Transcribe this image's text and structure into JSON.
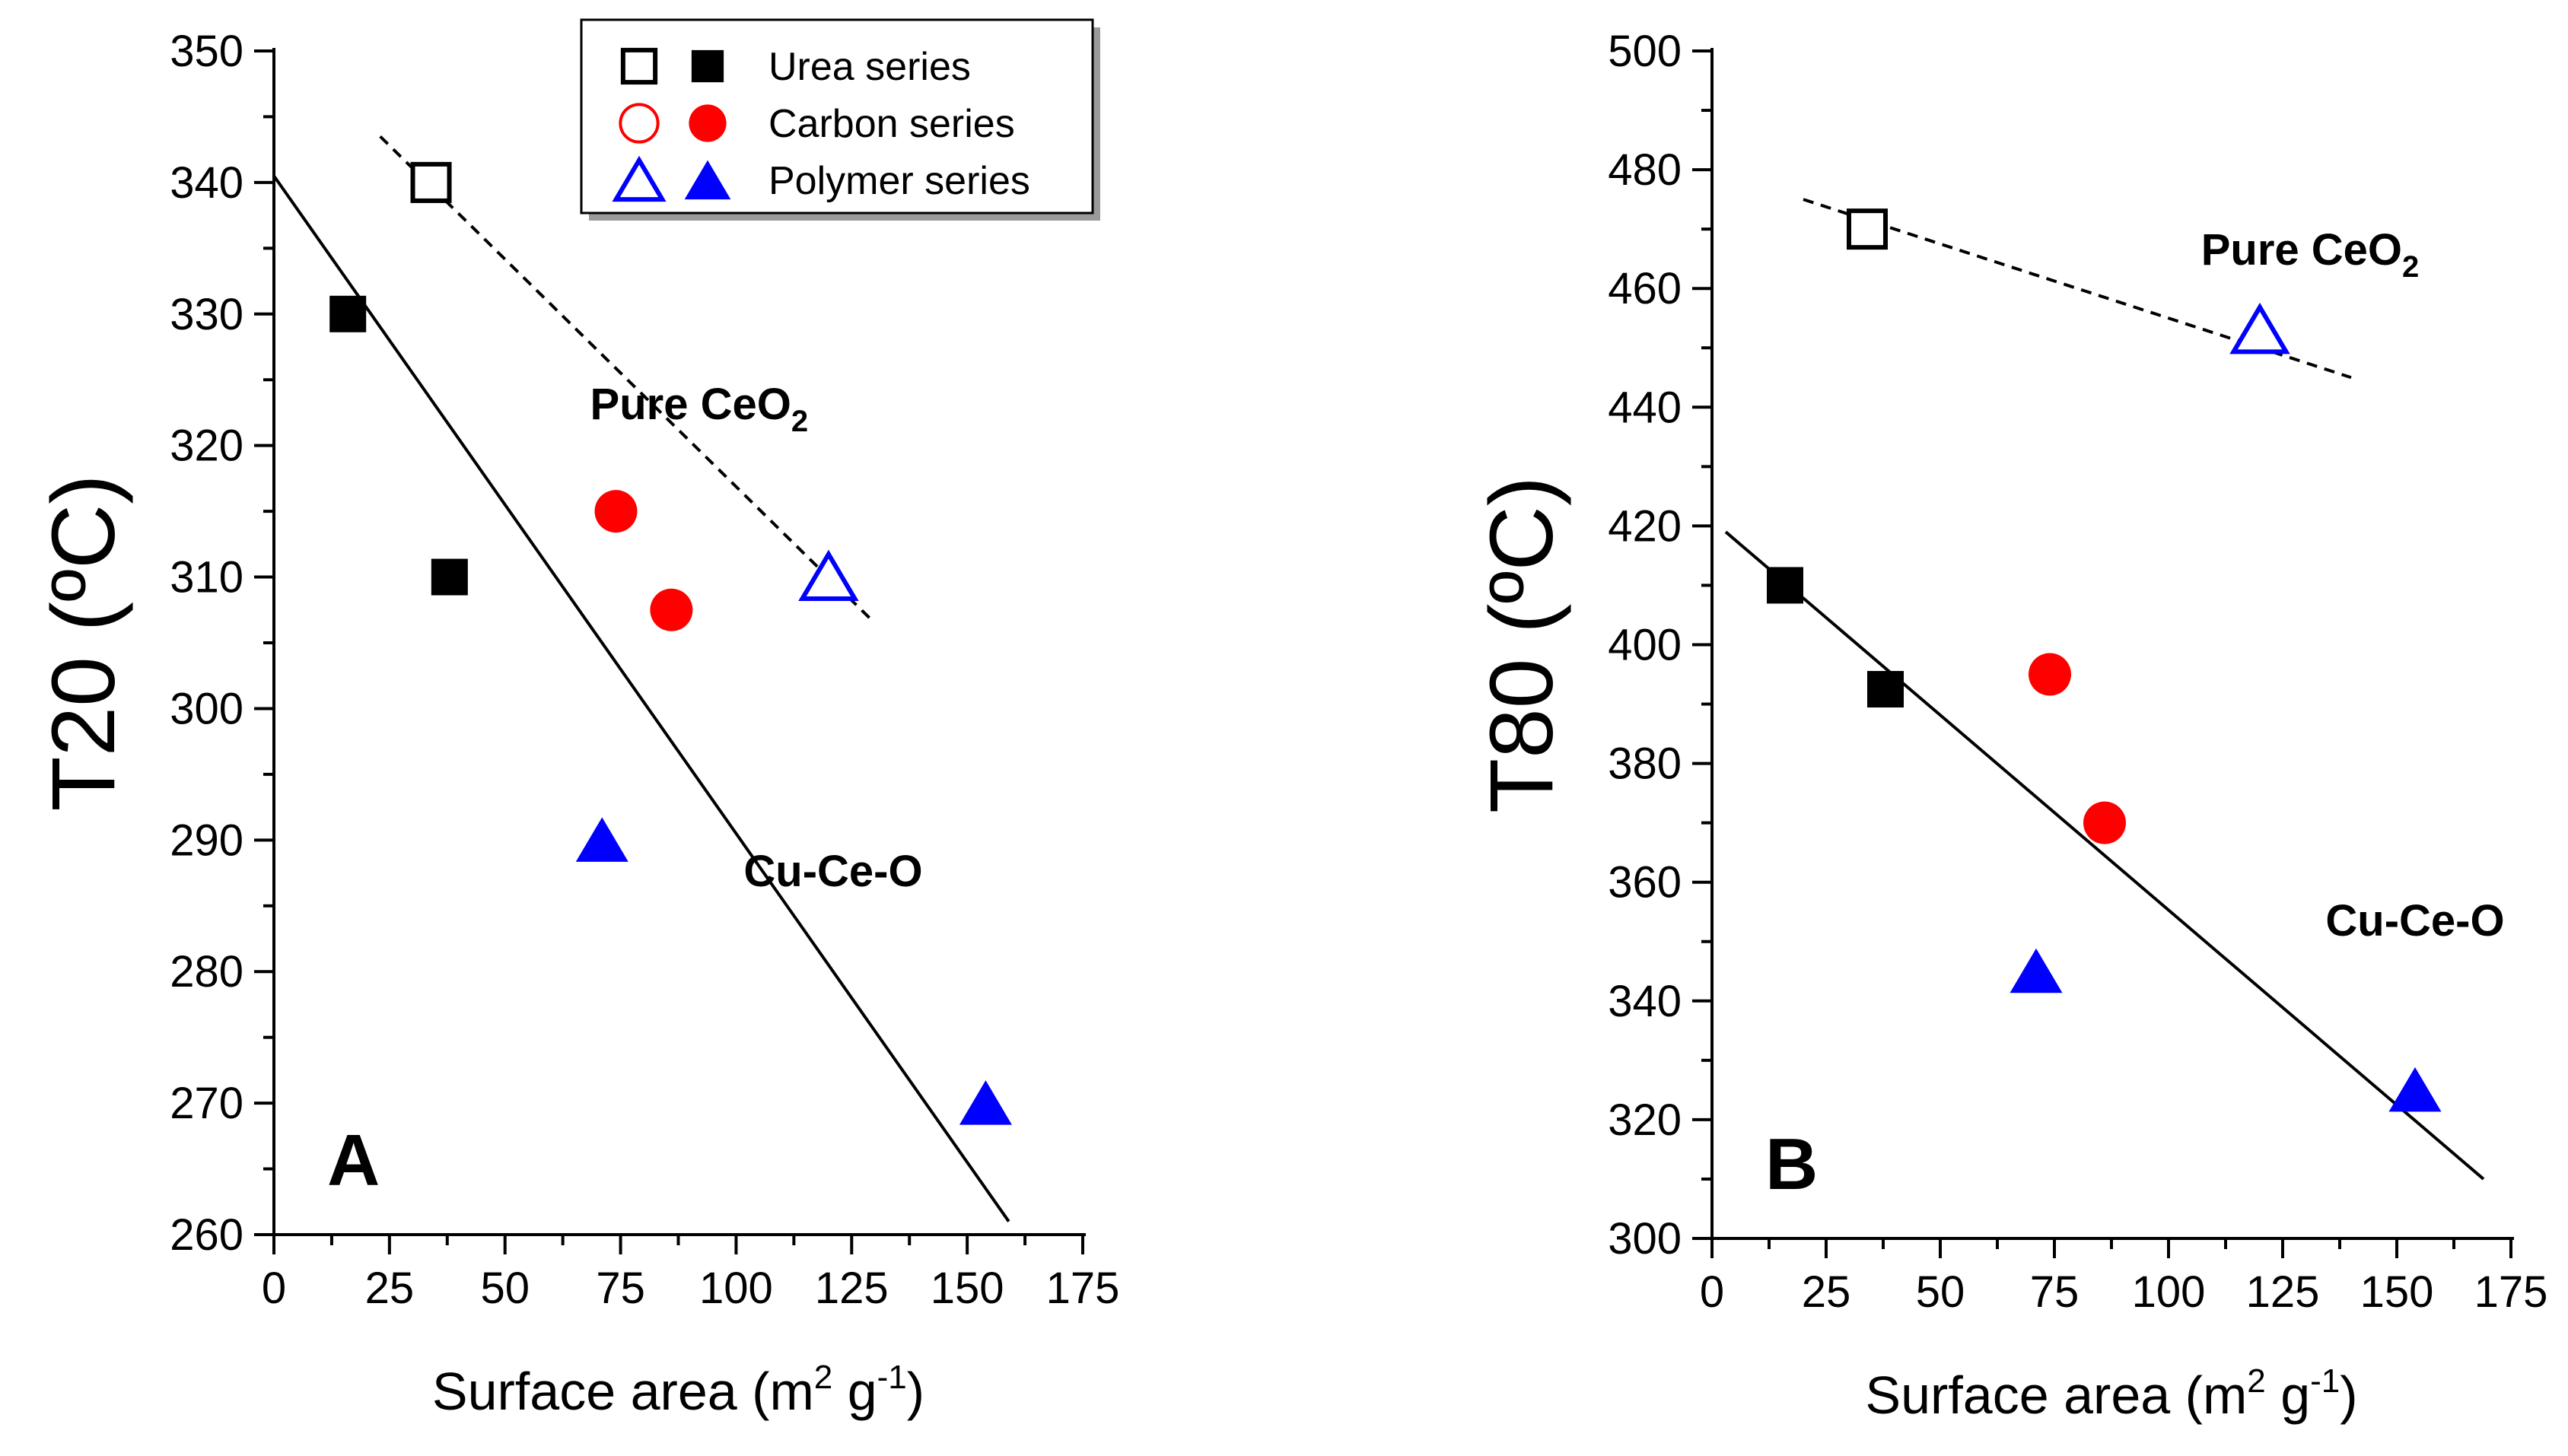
{
  "chart_data": [
    {
      "type": "scatter",
      "panel_label": "A",
      "xlabel": "Surface area (m",
      "xlabel_sup1": "2",
      "xlabel_mid": " g",
      "xlabel_sup2": "-1",
      "xlabel_end": ")",
      "ylabel": "T20 (ºC)",
      "xlim": [
        0,
        175
      ],
      "ylim": [
        260,
        350
      ],
      "xticks": [
        "0",
        "25",
        "50",
        "75",
        "100",
        "125",
        "150",
        "175"
      ],
      "yticks": [
        "260",
        "270",
        "280",
        "290",
        "300",
        "310",
        "320",
        "330",
        "340",
        "350"
      ],
      "series": [
        {
          "name": "Urea series",
          "marker": "square",
          "points": [
            {
              "x": 34,
              "y": 340,
              "filled": false
            },
            {
              "x": 16,
              "y": 330,
              "filled": true
            },
            {
              "x": 38,
              "y": 310,
              "filled": true
            }
          ]
        },
        {
          "name": "Carbon series",
          "marker": "circle",
          "points": [
            {
              "x": 74,
              "y": 315,
              "filled": true
            },
            {
              "x": 86,
              "y": 307.5,
              "filled": true
            }
          ]
        },
        {
          "name": "Polymer series",
          "marker": "triangle",
          "points": [
            {
              "x": 120,
              "y": 310,
              "filled": false
            },
            {
              "x": 71,
              "y": 290,
              "filled": true
            },
            {
              "x": 154,
              "y": 270,
              "filled": true
            }
          ]
        }
      ],
      "fit_lines": [
        {
          "name": "Pure CeO2",
          "style": "dashed",
          "from": [
            23,
            343.5
          ],
          "to": [
            130,
            306.5
          ]
        },
        {
          "name": "Cu-Ce-O",
          "style": "solid",
          "from": [
            0,
            340.5
          ],
          "to": [
            159,
            261
          ]
        }
      ],
      "annotations": [
        {
          "text": "Pure CeO",
          "sub": "2",
          "x": 92,
          "y": 322
        },
        {
          "text": "Cu-Ce-O",
          "x": 121,
          "y": 286.5
        }
      ]
    },
    {
      "type": "scatter",
      "panel_label": "B",
      "xlabel": "Surface area (m",
      "xlabel_sup1": "2",
      "xlabel_mid": " g",
      "xlabel_sup2": "-1",
      "xlabel_end": ")",
      "ylabel": "T80 (ºC)",
      "xlim": [
        0,
        175
      ],
      "ylim": [
        300,
        500
      ],
      "xticks": [
        "0",
        "25",
        "50",
        "75",
        "100",
        "125",
        "150",
        "175"
      ],
      "yticks": [
        "300",
        "320",
        "340",
        "360",
        "380",
        "400",
        "420",
        "440",
        "460",
        "480",
        "500"
      ],
      "series": [
        {
          "name": "Urea series",
          "marker": "square",
          "points": [
            {
              "x": 34,
              "y": 470,
              "filled": false
            },
            {
              "x": 16,
              "y": 410,
              "filled": true
            },
            {
              "x": 38,
              "y": 392.5,
              "filled": true
            }
          ]
        },
        {
          "name": "Carbon series",
          "marker": "circle",
          "points": [
            {
              "x": 74,
              "y": 395,
              "filled": true
            },
            {
              "x": 86,
              "y": 370,
              "filled": true
            }
          ]
        },
        {
          "name": "Polymer series",
          "marker": "triangle",
          "points": [
            {
              "x": 120,
              "y": 453,
              "filled": false
            },
            {
              "x": 71,
              "y": 345,
              "filled": true
            },
            {
              "x": 154,
              "y": 325,
              "filled": true
            }
          ]
        }
      ],
      "fit_lines": [
        {
          "name": "Pure CeO2",
          "style": "dashed",
          "from": [
            20,
            475
          ],
          "to": [
            140,
            445
          ]
        },
        {
          "name": "Cu-Ce-O",
          "style": "solid",
          "from": [
            3,
            419
          ],
          "to": [
            169,
            310
          ]
        }
      ],
      "annotations": [
        {
          "text": "Pure CeO",
          "sub": "2",
          "x": 131,
          "y": 464
        },
        {
          "text": "Cu-Ce-O",
          "x": 154,
          "y": 351
        }
      ]
    }
  ],
  "legend": {
    "position": "top-center",
    "entries": [
      {
        "label": "Urea series",
        "marker": "square",
        "color": "#000000"
      },
      {
        "label": "Carbon series",
        "marker": "circle",
        "color": "#ff0000"
      },
      {
        "label": "Polymer series",
        "marker": "triangle",
        "color": "#0000ff"
      }
    ]
  },
  "colors": {
    "Urea series": "#000000",
    "Carbon series": "#ff0000",
    "Polymer series": "#0000ff",
    "axis": "#000000"
  }
}
